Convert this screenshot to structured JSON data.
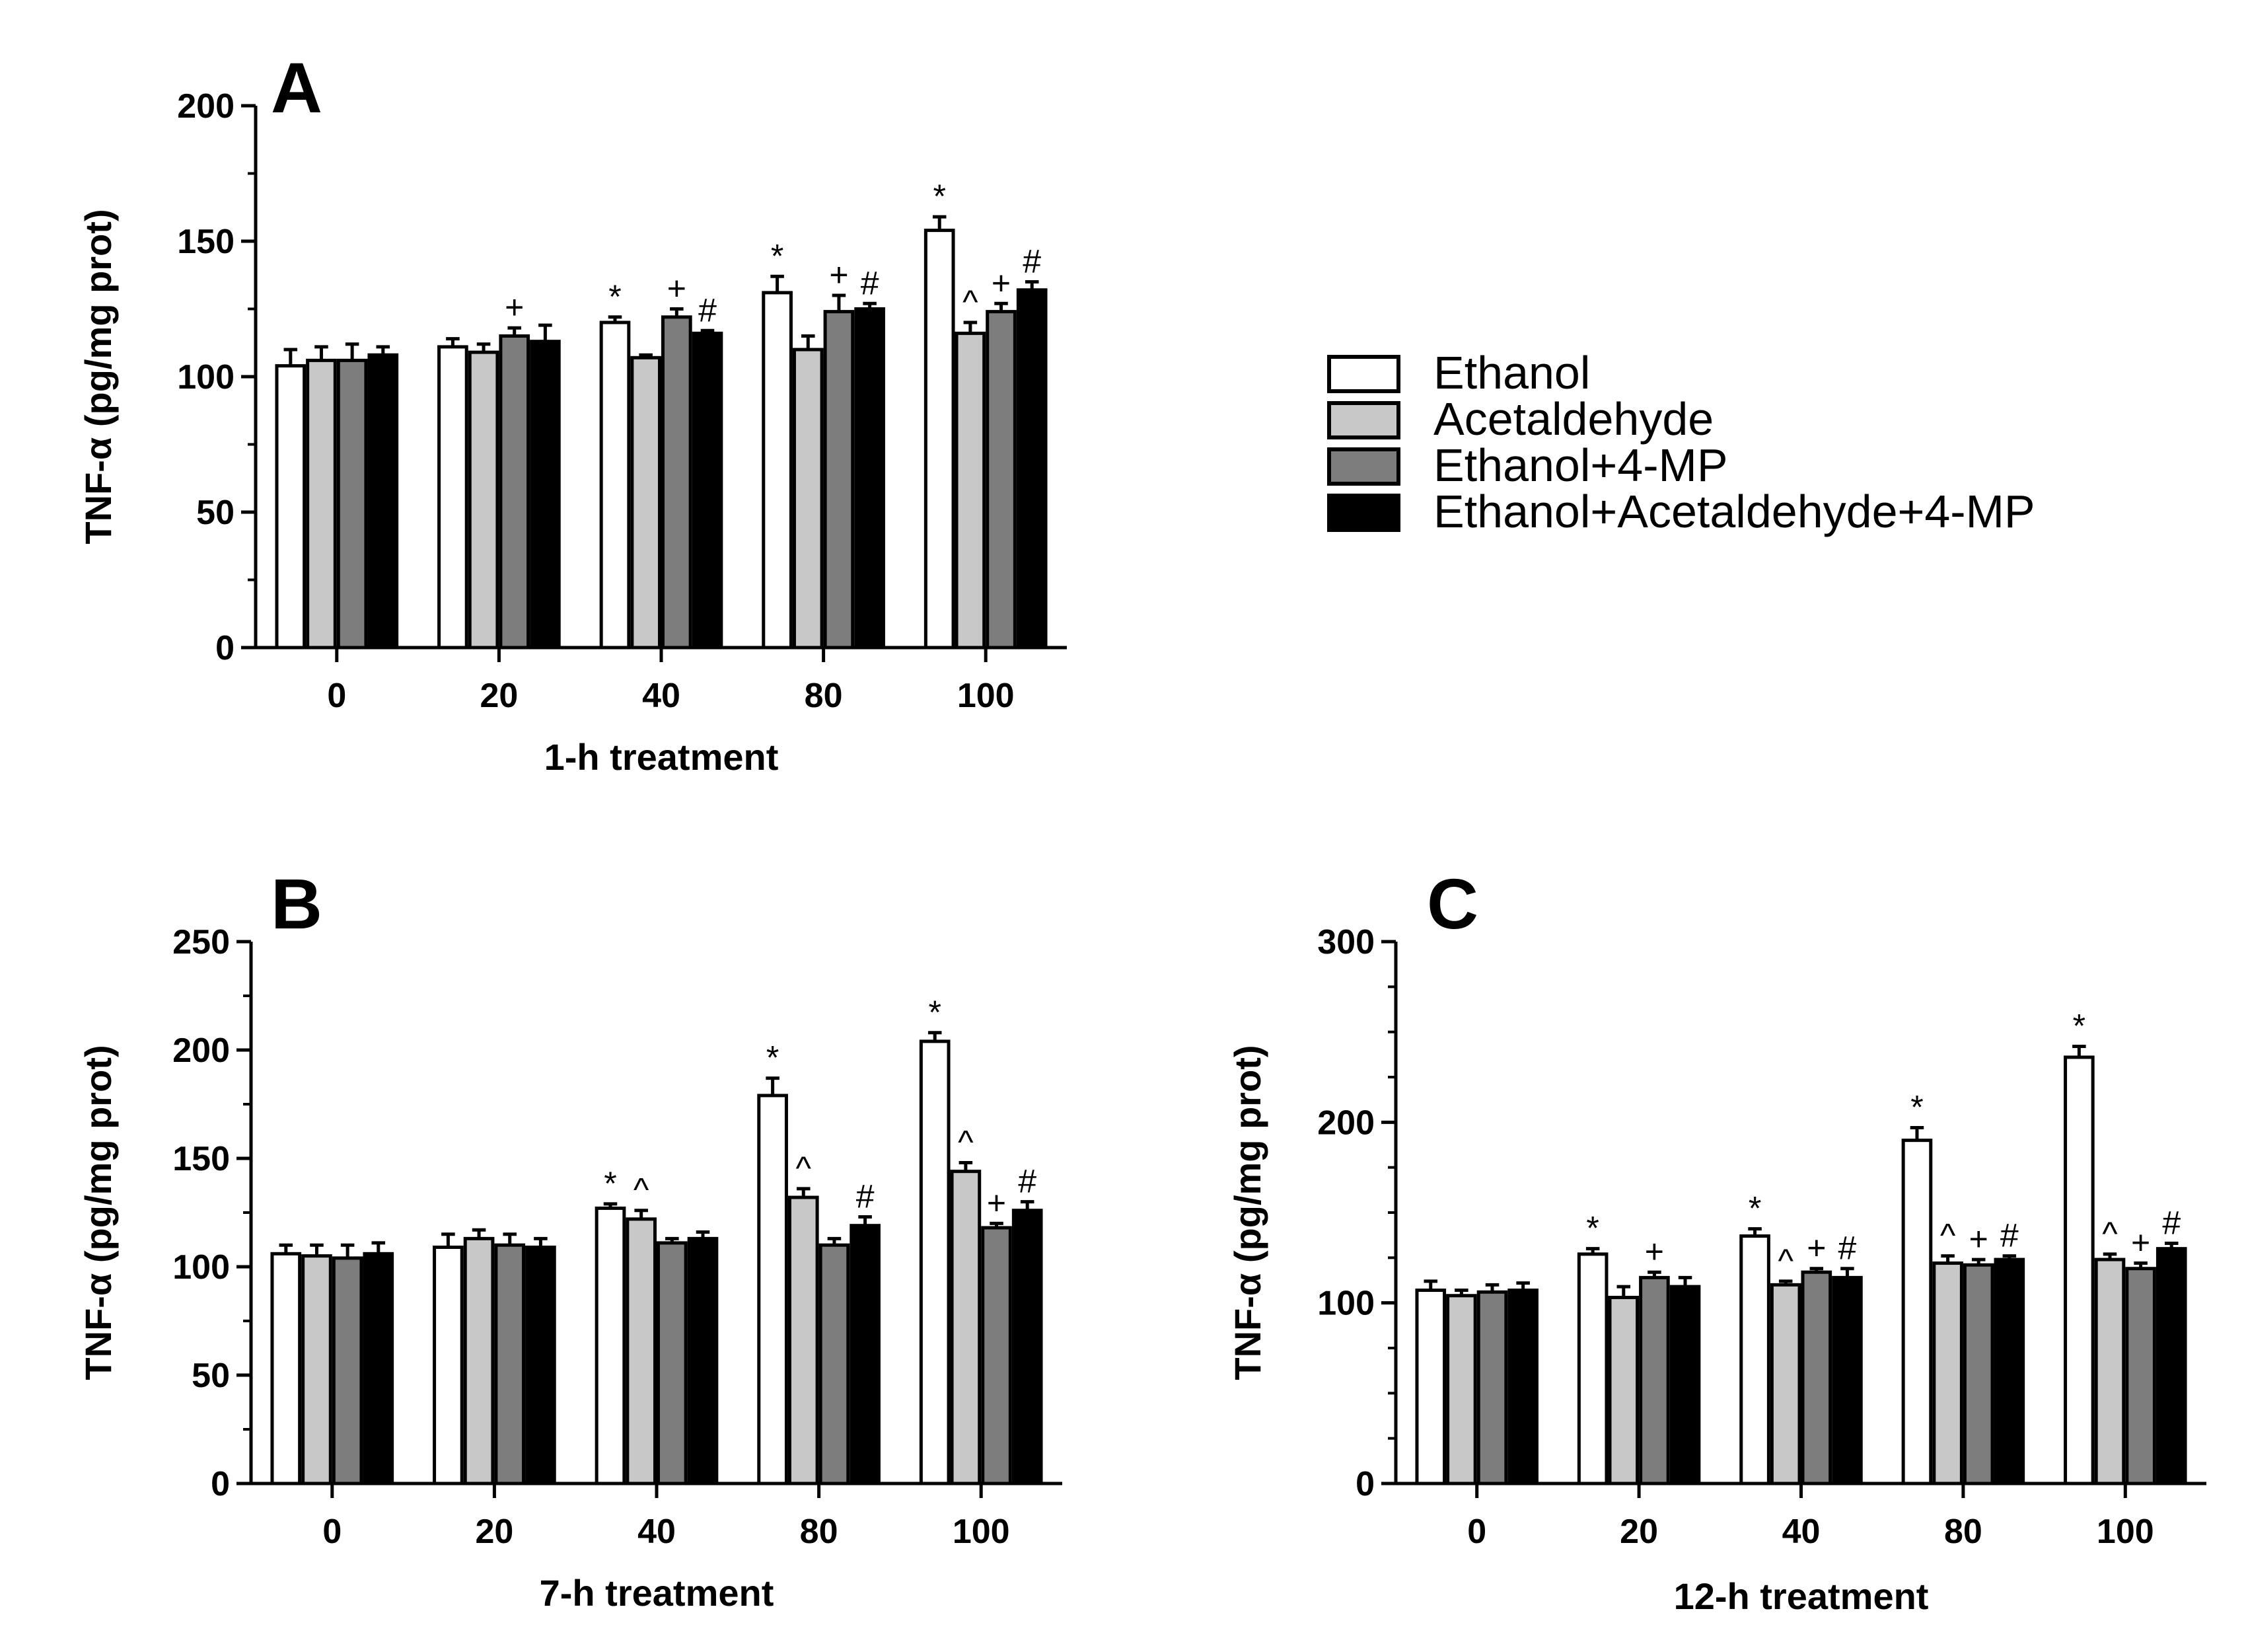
{
  "legend": {
    "entries": [
      {
        "name": "Ethanol",
        "color": "#ffffff"
      },
      {
        "name": "Acetaldehyde",
        "color": "#c8c8c8"
      },
      {
        "name": "Ethanol+4-MP",
        "color": "#7d7d7d"
      },
      {
        "name": "Ethanol+Acetaldehyde+4-MP",
        "color": "#000000"
      }
    ]
  },
  "chart_data": [
    {
      "type": "bar",
      "panel": "A",
      "xlabel": "1-h treatment",
      "ylabel": "TNF-α (pg/mg prot)",
      "ylim": [
        0,
        200
      ],
      "yticks": [
        0,
        50,
        100,
        150,
        200
      ],
      "categories": [
        "0",
        "20",
        "40",
        "80",
        "100"
      ],
      "series": [
        {
          "name": "Ethanol",
          "values": [
            104,
            111,
            120,
            131,
            154
          ],
          "errors": [
            6,
            3,
            2,
            6,
            5
          ],
          "sig": [
            "",
            "",
            "*",
            "*",
            "*"
          ]
        },
        {
          "name": "Acetaldehyde",
          "values": [
            106,
            109,
            107,
            110,
            116
          ],
          "errors": [
            5,
            3,
            1,
            5,
            4
          ],
          "sig": [
            "",
            "",
            "",
            "",
            "^"
          ]
        },
        {
          "name": "Ethanol+4-MP",
          "values": [
            106,
            115,
            122,
            124,
            124
          ],
          "errors": [
            6,
            3,
            3,
            6,
            3
          ],
          "sig": [
            "",
            "+",
            "+",
            "+",
            "+"
          ]
        },
        {
          "name": "Ethanol+Acetaldehyde+4-MP",
          "values": [
            108,
            113,
            116,
            125,
            132
          ],
          "errors": [
            3,
            6,
            1,
            2,
            3
          ],
          "sig": [
            "",
            "",
            "#",
            "#",
            "#"
          ]
        }
      ]
    },
    {
      "type": "bar",
      "panel": "B",
      "xlabel": "7-h treatment",
      "ylabel": "TNF-α (pg/mg prot)",
      "ylim": [
        0,
        250
      ],
      "yticks": [
        0,
        50,
        100,
        150,
        200,
        250
      ],
      "categories": [
        "0",
        "20",
        "40",
        "80",
        "100"
      ],
      "series": [
        {
          "name": "Ethanol",
          "values": [
            106,
            109,
            127,
            179,
            204
          ],
          "errors": [
            4,
            6,
            2,
            8,
            4
          ],
          "sig": [
            "",
            "",
            "*",
            "*",
            "*"
          ]
        },
        {
          "name": "Acetaldehyde",
          "values": [
            105,
            113,
            122,
            132,
            144
          ],
          "errors": [
            5,
            4,
            4,
            4,
            4
          ],
          "sig": [
            "",
            "",
            "^",
            "^",
            "^"
          ]
        },
        {
          "name": "Ethanol+4-MP",
          "values": [
            104,
            110,
            111,
            110,
            118
          ],
          "errors": [
            6,
            5,
            2,
            3,
            2
          ],
          "sig": [
            "",
            "",
            "",
            "",
            "+"
          ]
        },
        {
          "name": "Ethanol+Acetaldehyde+4-MP",
          "values": [
            106,
            109,
            113,
            119,
            126
          ],
          "errors": [
            5,
            4,
            3,
            4,
            4
          ],
          "sig": [
            "",
            "",
            "",
            "#",
            "#"
          ]
        }
      ]
    },
    {
      "type": "bar",
      "panel": "C",
      "xlabel": "12-h treatment",
      "ylabel": "TNF-α (pg/mg prot)",
      "ylim": [
        0,
        300
      ],
      "yticks": [
        0,
        100,
        200,
        300
      ],
      "categories": [
        "0",
        "20",
        "40",
        "80",
        "100"
      ],
      "series": [
        {
          "name": "Ethanol",
          "values": [
            107,
            127,
            137,
            190,
            236
          ],
          "errors": [
            5,
            3,
            4,
            7,
            6
          ],
          "sig": [
            "",
            "*",
            "*",
            "*",
            "*"
          ]
        },
        {
          "name": "Acetaldehyde",
          "values": [
            104,
            103,
            110,
            122,
            124
          ],
          "errors": [
            3,
            6,
            2,
            4,
            3
          ],
          "sig": [
            "",
            "",
            "^",
            "^",
            "^"
          ]
        },
        {
          "name": "Ethanol+4-MP",
          "values": [
            106,
            114,
            117,
            121,
            119
          ],
          "errors": [
            4,
            3,
            2,
            3,
            3
          ],
          "sig": [
            "",
            "+",
            "+",
            "+",
            "+"
          ]
        },
        {
          "name": "Ethanol+Acetaldehyde+4-MP",
          "values": [
            107,
            109,
            114,
            124,
            130
          ],
          "errors": [
            4,
            5,
            5,
            2,
            3
          ],
          "sig": [
            "",
            "",
            "#",
            "#",
            "#"
          ]
        }
      ]
    }
  ]
}
